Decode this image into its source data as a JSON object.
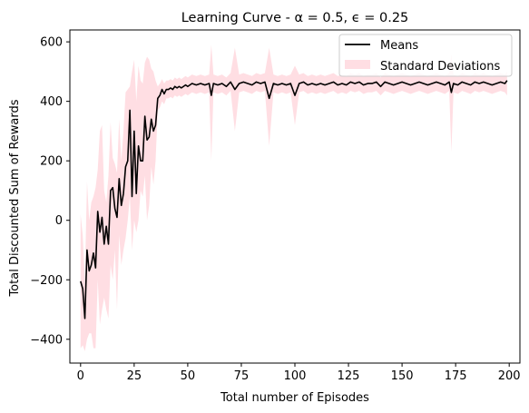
{
  "chart_data": {
    "type": "line",
    "title": "Learning Curve - α = 0.5, ϵ = 0.25",
    "xlabel": "Total number of Episodes",
    "ylabel": "Total Discounted Sum of Rewards",
    "xlim": [
      -5,
      205
    ],
    "ylim": [
      -480,
      640
    ],
    "xticks": [
      0,
      25,
      50,
      75,
      100,
      125,
      150,
      175,
      200
    ],
    "yticks": [
      -400,
      -200,
      0,
      200,
      400,
      600
    ],
    "grid": false,
    "legend_position": "top-right",
    "series": [
      {
        "name": "Means",
        "kind": "line",
        "color": "#000000",
        "x": [
          0,
          1,
          2,
          3,
          4,
          5,
          6,
          7,
          8,
          9,
          10,
          11,
          12,
          13,
          14,
          15,
          16,
          17,
          18,
          19,
          20,
          21,
          22,
          23,
          24,
          25,
          26,
          27,
          28,
          29,
          30,
          31,
          32,
          33,
          34,
          35,
          36,
          37,
          38,
          39,
          40,
          41,
          42,
          43,
          44,
          45,
          46,
          47,
          48,
          49,
          50,
          52,
          54,
          56,
          58,
          60,
          61,
          62,
          64,
          66,
          68,
          70,
          72,
          74,
          76,
          78,
          80,
          82,
          84,
          86,
          88,
          90,
          92,
          94,
          96,
          98,
          100,
          102,
          104,
          106,
          108,
          110,
          112,
          114,
          116,
          118,
          120,
          122,
          124,
          126,
          128,
          130,
          132,
          134,
          136,
          138,
          140,
          142,
          144,
          146,
          148,
          150,
          152,
          154,
          156,
          158,
          160,
          162,
          164,
          166,
          168,
          170,
          172,
          173,
          174,
          176,
          178,
          180,
          182,
          184,
          186,
          188,
          190,
          192,
          194,
          196,
          198,
          199
        ],
        "values": [
          -205,
          -230,
          -330,
          -100,
          -170,
          -150,
          -110,
          -160,
          30,
          -40,
          10,
          -80,
          -20,
          -80,
          100,
          110,
          40,
          10,
          140,
          50,
          90,
          180,
          200,
          370,
          80,
          300,
          90,
          250,
          200,
          200,
          350,
          270,
          280,
          340,
          300,
          320,
          410,
          420,
          440,
          425,
          440,
          440,
          445,
          440,
          450,
          445,
          450,
          445,
          450,
          455,
          450,
          460,
          455,
          460,
          455,
          460,
          420,
          460,
          455,
          460,
          450,
          465,
          440,
          460,
          465,
          460,
          455,
          465,
          460,
          465,
          410,
          460,
          455,
          460,
          455,
          460,
          420,
          460,
          465,
          455,
          460,
          455,
          460,
          455,
          460,
          465,
          455,
          460,
          455,
          465,
          460,
          465,
          455,
          460,
          460,
          465,
          450,
          465,
          460,
          455,
          460,
          465,
          460,
          455,
          460,
          465,
          460,
          455,
          460,
          465,
          460,
          455,
          465,
          430,
          460,
          455,
          465,
          460,
          455,
          465,
          460,
          465,
          460,
          455,
          460,
          465,
          460,
          470
        ]
      },
      {
        "name": "Standard Deviations",
        "kind": "band",
        "color": "#ffb6c1",
        "x": [
          0,
          1,
          2,
          3,
          4,
          5,
          6,
          7,
          8,
          9,
          10,
          11,
          12,
          13,
          14,
          15,
          16,
          17,
          18,
          19,
          20,
          21,
          22,
          23,
          24,
          25,
          26,
          27,
          28,
          29,
          30,
          31,
          32,
          33,
          34,
          35,
          36,
          37,
          38,
          39,
          40,
          41,
          42,
          43,
          44,
          45,
          46,
          47,
          48,
          49,
          50,
          52,
          54,
          56,
          58,
          60,
          61,
          62,
          64,
          66,
          68,
          70,
          72,
          74,
          76,
          78,
          80,
          82,
          84,
          86,
          88,
          90,
          92,
          94,
          96,
          98,
          100,
          102,
          104,
          106,
          108,
          110,
          112,
          114,
          116,
          118,
          120,
          122,
          124,
          126,
          128,
          130,
          132,
          134,
          136,
          138,
          140,
          142,
          144,
          146,
          148,
          150,
          152,
          154,
          156,
          158,
          160,
          162,
          164,
          166,
          168,
          170,
          172,
          173,
          174,
          176,
          178,
          180,
          182,
          184,
          186,
          188,
          190,
          192,
          194,
          196,
          198,
          199
        ],
        "upper": [
          20,
          -50,
          -200,
          130,
          0,
          60,
          80,
          110,
          170,
          300,
          320,
          100,
          60,
          150,
          330,
          210,
          190,
          160,
          340,
          200,
          300,
          430,
          440,
          450,
          500,
          540,
          400,
          520,
          470,
          460,
          530,
          550,
          540,
          510,
          500,
          470,
          450,
          460,
          475,
          460,
          470,
          470,
          475,
          470,
          480,
          475,
          480,
          475,
          480,
          485,
          480,
          490,
          485,
          490,
          485,
          490,
          590,
          490,
          485,
          490,
          480,
          495,
          580,
          490,
          495,
          490,
          485,
          495,
          490,
          495,
          580,
          490,
          485,
          490,
          485,
          490,
          520,
          490,
          495,
          485,
          490,
          485,
          490,
          485,
          490,
          495,
          485,
          490,
          485,
          495,
          490,
          495,
          485,
          490,
          490,
          495,
          480,
          495,
          490,
          485,
          490,
          495,
          490,
          485,
          490,
          495,
          490,
          485,
          490,
          495,
          490,
          485,
          495,
          560,
          490,
          485,
          495,
          490,
          485,
          495,
          490,
          495,
          490,
          485,
          490,
          495,
          490,
          500
        ],
        "lower": [
          -430,
          -420,
          -440,
          -400,
          -380,
          -380,
          -430,
          -430,
          -200,
          -350,
          -300,
          -260,
          -300,
          -330,
          -150,
          -200,
          -100,
          -300,
          -50,
          -150,
          -100,
          -60,
          0,
          80,
          -100,
          0,
          -40,
          0,
          100,
          80,
          150,
          0,
          50,
          180,
          120,
          200,
          370,
          380,
          400,
          390,
          410,
          410,
          415,
          410,
          420,
          415,
          420,
          415,
          420,
          425,
          420,
          430,
          425,
          430,
          425,
          430,
          200,
          430,
          425,
          430,
          420,
          435,
          300,
          430,
          435,
          430,
          425,
          435,
          430,
          435,
          250,
          430,
          425,
          430,
          425,
          430,
          320,
          430,
          435,
          425,
          430,
          425,
          430,
          425,
          430,
          435,
          425,
          430,
          425,
          435,
          430,
          435,
          425,
          430,
          430,
          435,
          420,
          435,
          430,
          425,
          430,
          435,
          430,
          425,
          430,
          435,
          430,
          425,
          430,
          435,
          430,
          425,
          435,
          230,
          430,
          425,
          435,
          430,
          425,
          435,
          430,
          435,
          430,
          425,
          430,
          435,
          430,
          420
        ]
      }
    ]
  }
}
